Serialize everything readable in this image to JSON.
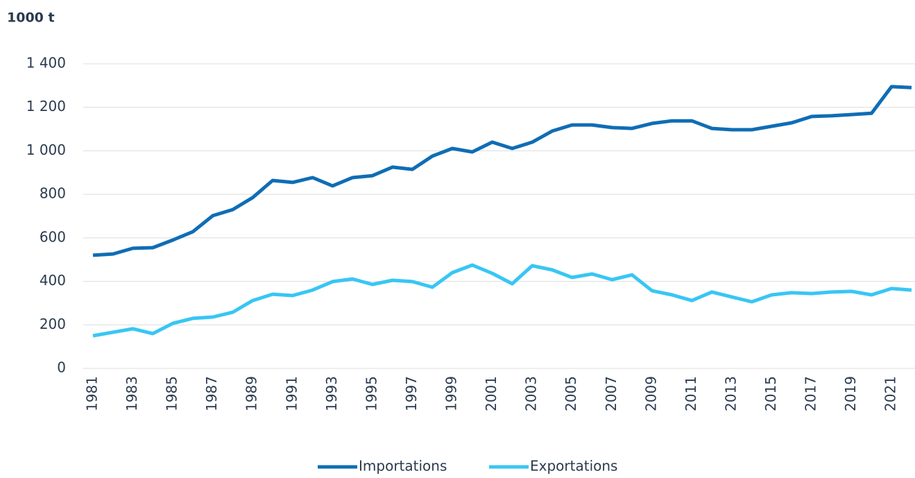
{
  "chart_data": {
    "type": "line",
    "y_label": "1000 t",
    "categories": [
      "1981",
      null,
      "1983",
      null,
      "1985",
      null,
      "1987",
      null,
      "1989",
      null,
      "1991",
      null,
      "1993",
      null,
      "1995",
      null,
      "1997",
      null,
      "1999",
      null,
      "2001",
      null,
      "2003",
      null,
      "2005",
      null,
      "2007",
      null,
      "2009",
      null,
      "2011",
      null,
      "2013",
      null,
      "2015",
      null,
      "2017",
      null,
      "2019",
      null,
      "2021",
      null
    ],
    "series": [
      {
        "name": "Importations",
        "color": "#0f6db5",
        "values": [
          520,
          526,
          552,
          555,
          590,
          628,
          702,
          730,
          785,
          864,
          855,
          877,
          839,
          877,
          886,
          925,
          915,
          976,
          1011,
          995,
          1040,
          1011,
          1040,
          1091,
          1119,
          1119,
          1107,
          1103,
          1126,
          1138,
          1138,
          1103,
          1097,
          1097,
          1113,
          1129,
          1158,
          1161,
          1167,
          1173,
          1295,
          1291
        ]
      },
      {
        "name": "Exportations",
        "color": "#38c6f4",
        "values": [
          150,
          166,
          182,
          160,
          207,
          230,
          236,
          258,
          312,
          341,
          335,
          360,
          399,
          411,
          386,
          405,
          399,
          373,
          440,
          475,
          437,
          389,
          472,
          453,
          418,
          434,
          408,
          430,
          357,
          338,
          312,
          351,
          328,
          306,
          338,
          348,
          344,
          351,
          354,
          338,
          367,
          360
        ]
      }
    ],
    "ylim": [
      0,
      1400
    ],
    "yticks": [
      0,
      200,
      400,
      600,
      800,
      {
        "value": 1000,
        "label": "1 000"
      },
      {
        "value": 1200,
        "label": "1 200"
      },
      {
        "value": 1400,
        "label": "1 400"
      }
    ],
    "grid": true,
    "legend": "bottom"
  }
}
